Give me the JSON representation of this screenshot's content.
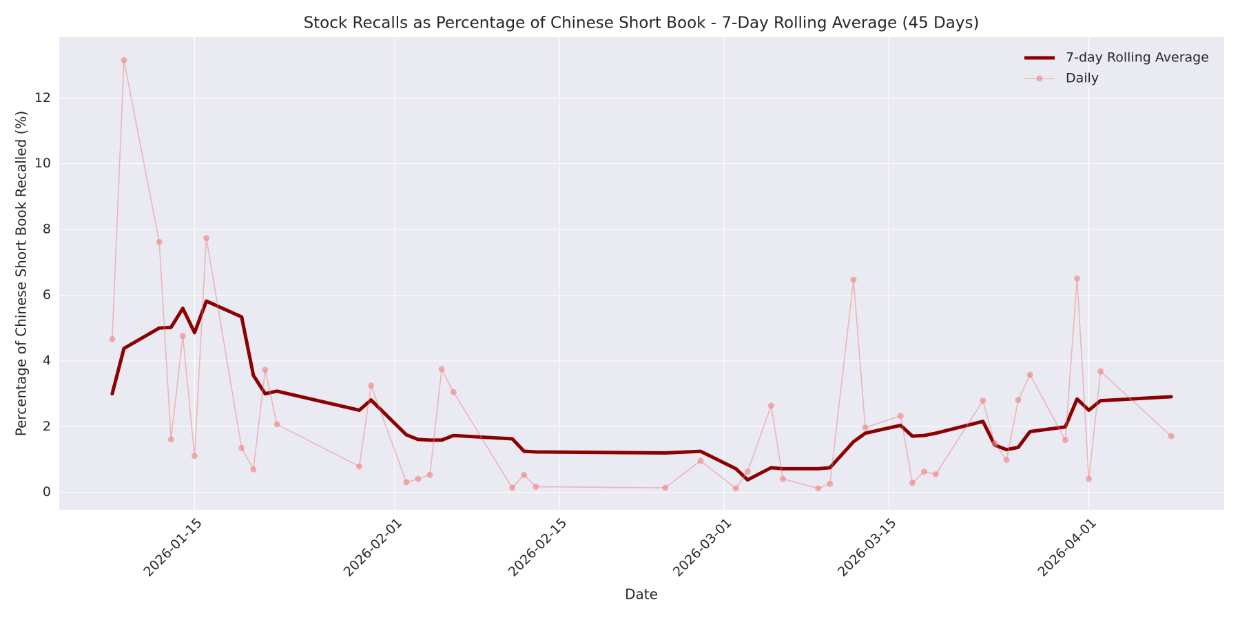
{
  "chart_data": {
    "type": "line",
    "title": "Stock Recalls as Percentage of Chinese Short Book - 7-Day Rolling Average (45 Days)",
    "x_label": "Date",
    "y_label": "Percentage of Chinese Short Book Recalled (%)",
    "x": [
      "2026-01-08",
      "2026-01-09",
      "2026-01-12",
      "2026-01-13",
      "2026-01-14",
      "2026-01-15",
      "2026-01-16",
      "2026-01-19",
      "2026-01-20",
      "2026-01-21",
      "2026-01-22",
      "2026-01-29",
      "2026-01-30",
      "2026-02-02",
      "2026-02-03",
      "2026-02-04",
      "2026-02-05",
      "2026-02-06",
      "2026-02-11",
      "2026-02-12",
      "2026-02-13",
      "2026-02-24",
      "2026-02-27",
      "2026-03-02",
      "2026-03-03",
      "2026-03-05",
      "2026-03-06",
      "2026-03-09",
      "2026-03-10",
      "2026-03-12",
      "2026-03-13",
      "2026-03-16",
      "2026-03-17",
      "2026-03-18",
      "2026-03-19",
      "2026-03-23",
      "2026-03-24",
      "2026-03-25",
      "2026-03-26",
      "2026-03-27",
      "2026-03-30",
      "2026-03-31",
      "2026-04-01",
      "2026-04-02",
      "2026-04-08"
    ],
    "series": [
      {
        "name": "7-day Rolling Average",
        "color": "#8b0000",
        "marker": false,
        "values": [
          3.0,
          4.38,
          5.0,
          5.02,
          5.6,
          4.86,
          5.82,
          5.34,
          3.56,
          3.0,
          3.08,
          2.5,
          2.81,
          1.75,
          1.61,
          1.59,
          1.59,
          1.73,
          1.63,
          1.25,
          1.23,
          1.2,
          1.25,
          0.72,
          0.38,
          0.75,
          0.72,
          0.72,
          0.75,
          1.54,
          1.8,
          2.04,
          1.71,
          1.73,
          1.8,
          2.16,
          1.44,
          1.3,
          1.37,
          1.85,
          1.99,
          2.84,
          2.5,
          2.79,
          2.91
        ]
      },
      {
        "name": "Daily",
        "color": "#f08080",
        "marker": true,
        "values": [
          4.66,
          13.15,
          7.62,
          1.61,
          4.76,
          1.11,
          7.74,
          1.35,
          0.7,
          3.73,
          2.07,
          0.79,
          3.25,
          0.31,
          0.41,
          0.53,
          3.75,
          3.05,
          0.14,
          0.53,
          0.17,
          0.14,
          0.96,
          0.12,
          0.63,
          2.64,
          0.41,
          0.12,
          0.26,
          6.47,
          1.97,
          2.33,
          0.29,
          0.63,
          0.55,
          2.79,
          1.49,
          0.99,
          2.81,
          3.58,
          1.59,
          6.51,
          0.41,
          3.68,
          1.71
        ]
      }
    ],
    "xlim": [
      "2026-01-03T12:00",
      "2026-04-12T12:00"
    ],
    "xticks": [
      "2026-01-15",
      "2026-02-01",
      "2026-02-15",
      "2026-03-01",
      "2026-03-15",
      "2026-04-01"
    ],
    "ylim": [
      -0.53,
      13.85
    ],
    "yticks": [
      0,
      2,
      4,
      6,
      8,
      10,
      12
    ],
    "grid": true,
    "legend": "upper right"
  }
}
